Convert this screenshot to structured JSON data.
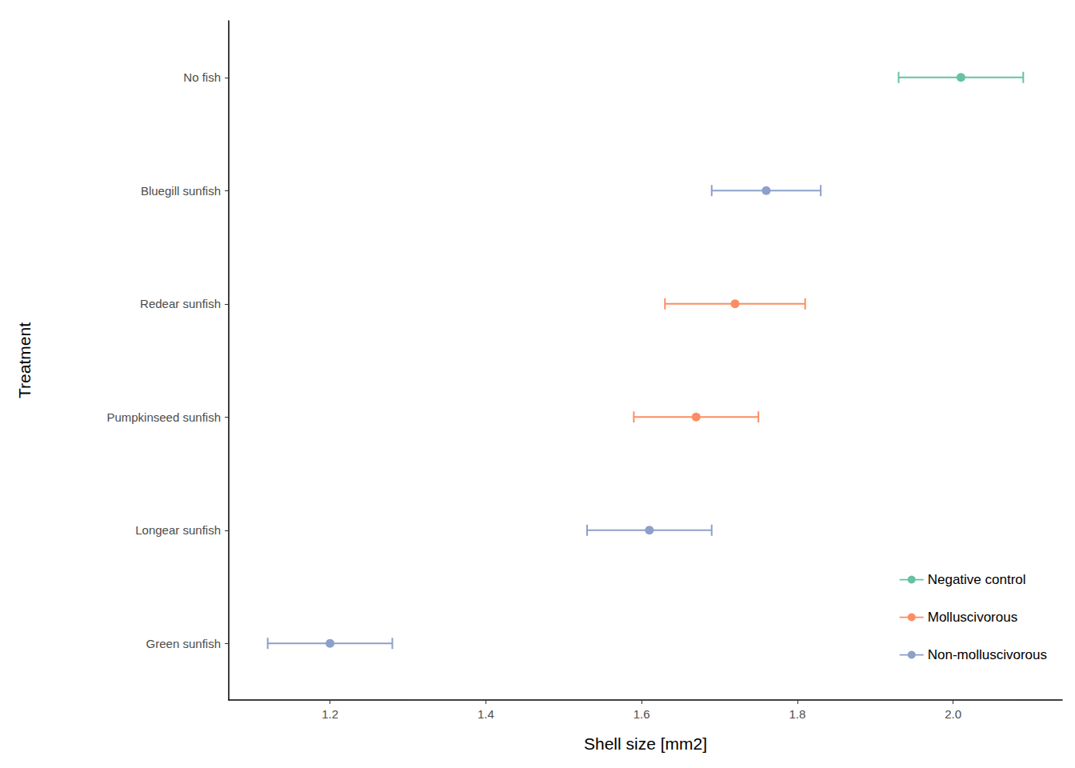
{
  "chart_data": {
    "type": "dot",
    "orientation": "horizontal",
    "x_label": "Shell size [mm2]",
    "y_label": "Treatment",
    "categories": [
      "No fish",
      "Bluegill sunfish",
      "Redear sunfish",
      "Pumpkinseed sunfish",
      "Longear sunfish",
      "Green sunfish"
    ],
    "series": [
      {
        "name": "Negative control",
        "color": "#66c2a5",
        "values": [
          2.01,
          null,
          null,
          null,
          null,
          null
        ],
        "lower": [
          1.93,
          null,
          null,
          null,
          null,
          null
        ],
        "upper": [
          2.09,
          null,
          null,
          null,
          null,
          null
        ]
      },
      {
        "name": "Molluscivorous",
        "color": "#fc8d62",
        "values": [
          null,
          null,
          1.72,
          1.67,
          null,
          null
        ],
        "lower": [
          null,
          null,
          1.63,
          1.59,
          null,
          null
        ],
        "upper": [
          null,
          null,
          1.81,
          1.75,
          null,
          null
        ]
      },
      {
        "name": "Non-molluscivorous",
        "color": "#8da0cb",
        "values": [
          null,
          1.76,
          null,
          null,
          1.61,
          1.2
        ],
        "lower": [
          null,
          1.69,
          null,
          null,
          1.53,
          1.12
        ],
        "upper": [
          null,
          1.83,
          null,
          null,
          1.69,
          1.28
        ]
      }
    ],
    "xlim": [
      1.07,
      2.14
    ],
    "xticks": [
      1.2,
      1.4,
      1.6,
      1.8,
      {
        "value": 2,
        "label": "2.0"
      }
    ],
    "legend": "bottom right",
    "grid": false
  }
}
